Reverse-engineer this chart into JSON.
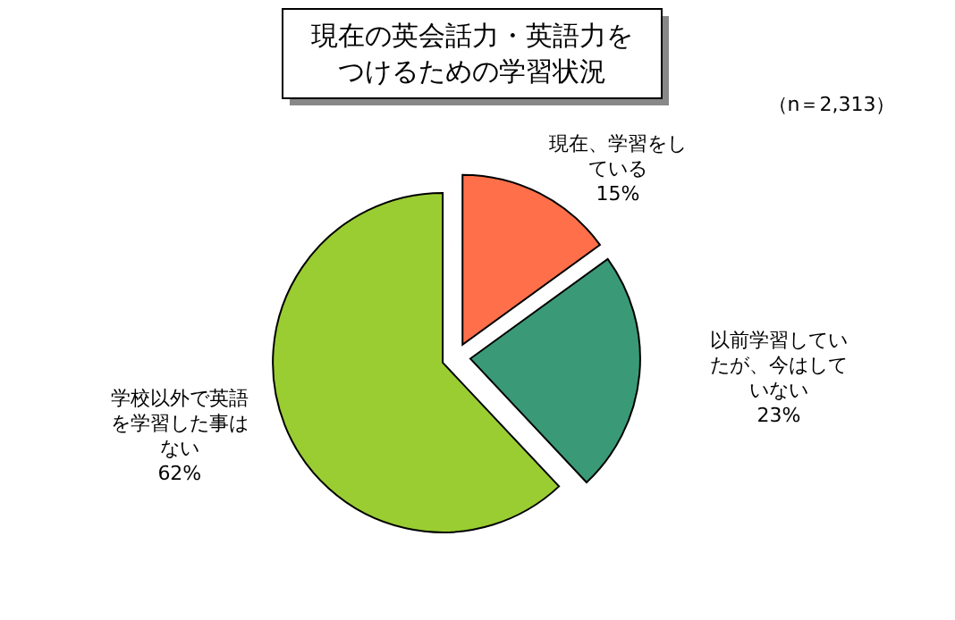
{
  "chart_data": {
    "type": "pie",
    "title": "現在の英会話力・英語力をつけるための学習状況",
    "annotations": [
      "（n＝2,313）"
    ],
    "categories": [
      "現在、学習をしている",
      "以前学習していたが、今はしていない",
      "学校以外で英語を学習した事はない"
    ],
    "values": [
      15,
      23,
      62
    ],
    "colors": [
      "#ff6f4a",
      "#3a9a78",
      "#9acd32"
    ],
    "value_labels": [
      "15%",
      "23%",
      "62%"
    ]
  }
}
